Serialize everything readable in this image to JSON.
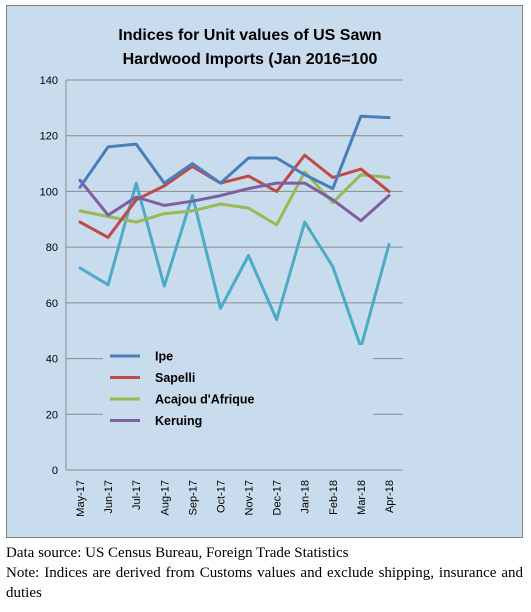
{
  "chart_data": {
    "type": "line",
    "title_line1": "Indices for Unit values of US Sawn",
    "title_line2": "Hardwood Imports (Jan 2016=100",
    "categories": [
      "May-17",
      "Jun-17",
      "Jul-17",
      "Aug-17",
      "Sep-17",
      "Oct-17",
      "Nov-17",
      "Dec-17",
      "Jan-18",
      "Feb-18",
      "Mar-18",
      "Apr-18"
    ],
    "ylim": [
      0,
      140
    ],
    "yticks": [
      "0",
      "20",
      "40",
      "60",
      "80",
      "100",
      "120",
      "140"
    ],
    "grid": true,
    "legend_position": "bottom-center",
    "series": [
      {
        "name": "Ipe",
        "color": "#4a7ebb",
        "values": [
          101.5,
          116,
          117,
          103,
          110,
          103,
          112,
          112,
          106,
          101,
          127,
          126.5
        ]
      },
      {
        "name": "Sapelli",
        "color": "#be4b48",
        "values": [
          89,
          83.5,
          97,
          102,
          109,
          103,
          105.5,
          100,
          113,
          105,
          108,
          100
        ]
      },
      {
        "name": "Acajou d'Afrique",
        "color": "#98b954",
        "values": [
          93,
          91,
          89,
          92,
          93,
          95.5,
          94,
          88,
          107,
          96,
          106,
          105
        ]
      },
      {
        "name": "Keruing",
        "color": "#7d60a0",
        "values": [
          104,
          91.5,
          98,
          95,
          96.5,
          98.5,
          101,
          103,
          103,
          97,
          89.5,
          98.5
        ]
      },
      {
        "name": "",
        "color": "#4bacc6",
        "values": [
          72.5,
          66.5,
          103,
          66,
          98.5,
          58,
          77,
          54,
          89,
          73,
          44,
          81
        ]
      }
    ]
  },
  "footer": {
    "source": "Data source: US Census Bureau, Foreign Trade Statistics",
    "note": "Note: Indices are derived from Customs values and exclude shipping, insurance and duties"
  }
}
